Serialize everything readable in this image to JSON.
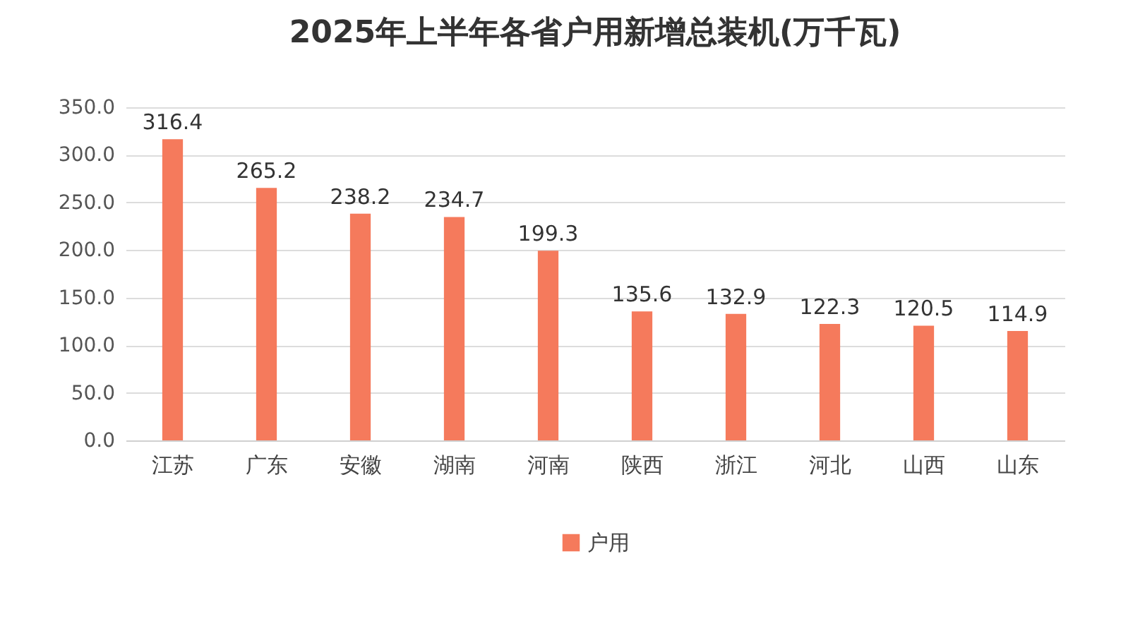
{
  "chart_data": {
    "type": "bar",
    "title": "2025年上半年各省户用新增总装机(万千瓦)",
    "categories": [
      "江苏",
      "广东",
      "安徽",
      "湖南",
      "河南",
      "陕西",
      "浙江",
      "河北",
      "山西",
      "山东"
    ],
    "series": [
      {
        "name": "户用",
        "color": "#f57a5c",
        "values": [
          316.4,
          265.2,
          238.2,
          234.7,
          199.3,
          135.6,
          132.9,
          122.3,
          120.5,
          114.9
        ]
      }
    ],
    "ylim": [
      0,
      350
    ],
    "yticks": [
      {
        "value": 0,
        "label": "0.0"
      },
      {
        "value": 50,
        "label": "50.0"
      },
      {
        "value": 100,
        "label": "100.0"
      },
      {
        "value": 150,
        "label": "150.0"
      },
      {
        "value": 200,
        "label": "200.0"
      },
      {
        "value": 250,
        "label": "250.0"
      },
      {
        "value": 300,
        "label": "300.0"
      },
      {
        "value": 350,
        "label": "350.0"
      }
    ],
    "grid": "y",
    "legend": "bottom",
    "data_labels": true
  }
}
